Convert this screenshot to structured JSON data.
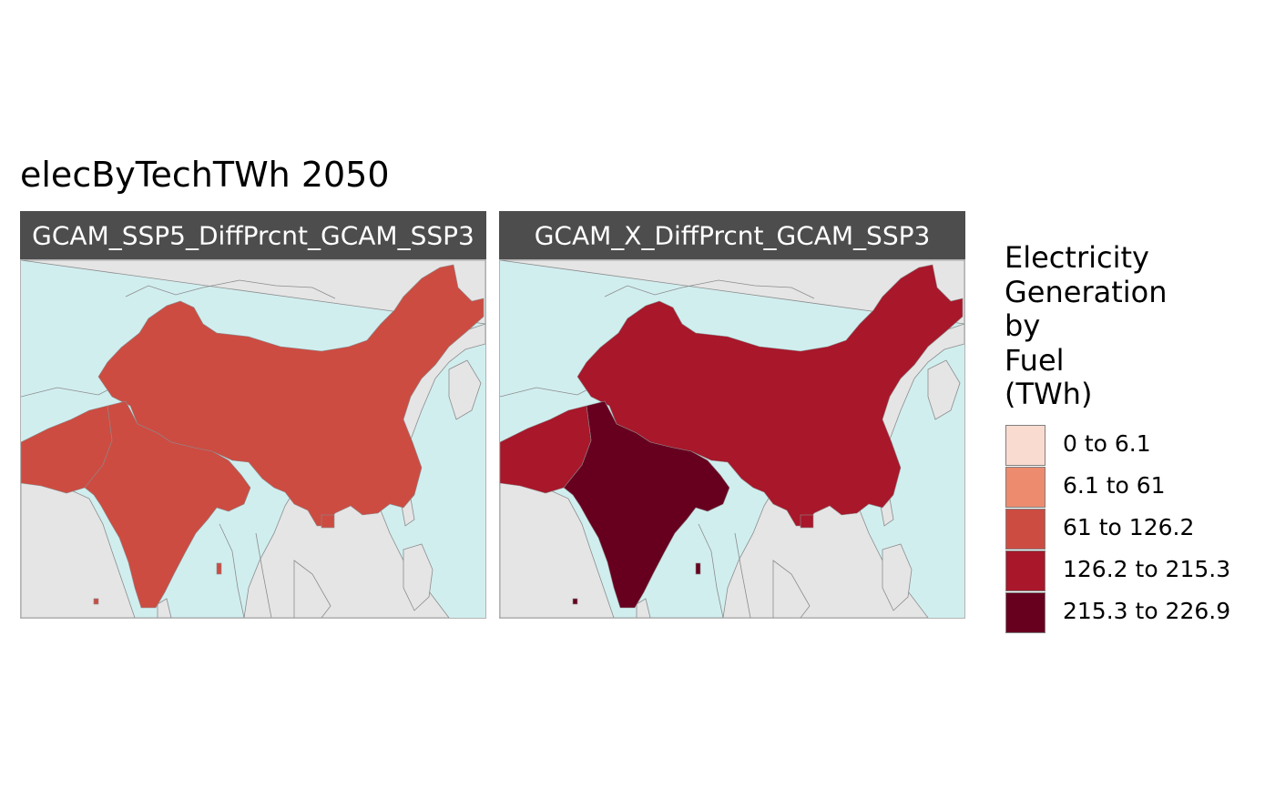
{
  "title": "elecByTechTWh 2050",
  "colors": {
    "ocean": "#d1eeef",
    "land_other": "#e5e5e5",
    "border": "#8c8c8c",
    "strip": "#4d4d4d"
  },
  "panels": [
    {
      "label": "GCAM_SSP5_DiffPrcnt_GCAM_SSP3",
      "regions": [
        {
          "name": "China",
          "class": "61 to 126.2",
          "color": "#cc4c42"
        },
        {
          "name": "India",
          "class": "61 to 126.2",
          "color": "#cc4c42"
        },
        {
          "name": "Pakistan",
          "class": "61 to 126.2",
          "color": "#cc4c42"
        }
      ]
    },
    {
      "label": "GCAM_X_DiffPrcnt_GCAM_SSP3",
      "regions": [
        {
          "name": "China",
          "class": "126.2 to 215.3",
          "color": "#a8172a"
        },
        {
          "name": "India",
          "class": "215.3 to 226.9",
          "color": "#67001f"
        },
        {
          "name": "Pakistan",
          "class": "126.2 to 215.3",
          "color": "#a8172a"
        }
      ]
    }
  ],
  "legend": {
    "title_lines": [
      "Electricity",
      "Generation",
      "by",
      "Fuel",
      "(TWh)"
    ],
    "items": [
      {
        "label": "0 to 6.1",
        "color": "#f9dbd0"
      },
      {
        "label": "6.1 to 61",
        "color": "#ec8b6e"
      },
      {
        "label": "61 to 126.2",
        "color": "#cc4c42"
      },
      {
        "label": "126.2 to 215.3",
        "color": "#a8172a"
      },
      {
        "label": "215.3 to 226.9",
        "color": "#67001f"
      }
    ]
  }
}
